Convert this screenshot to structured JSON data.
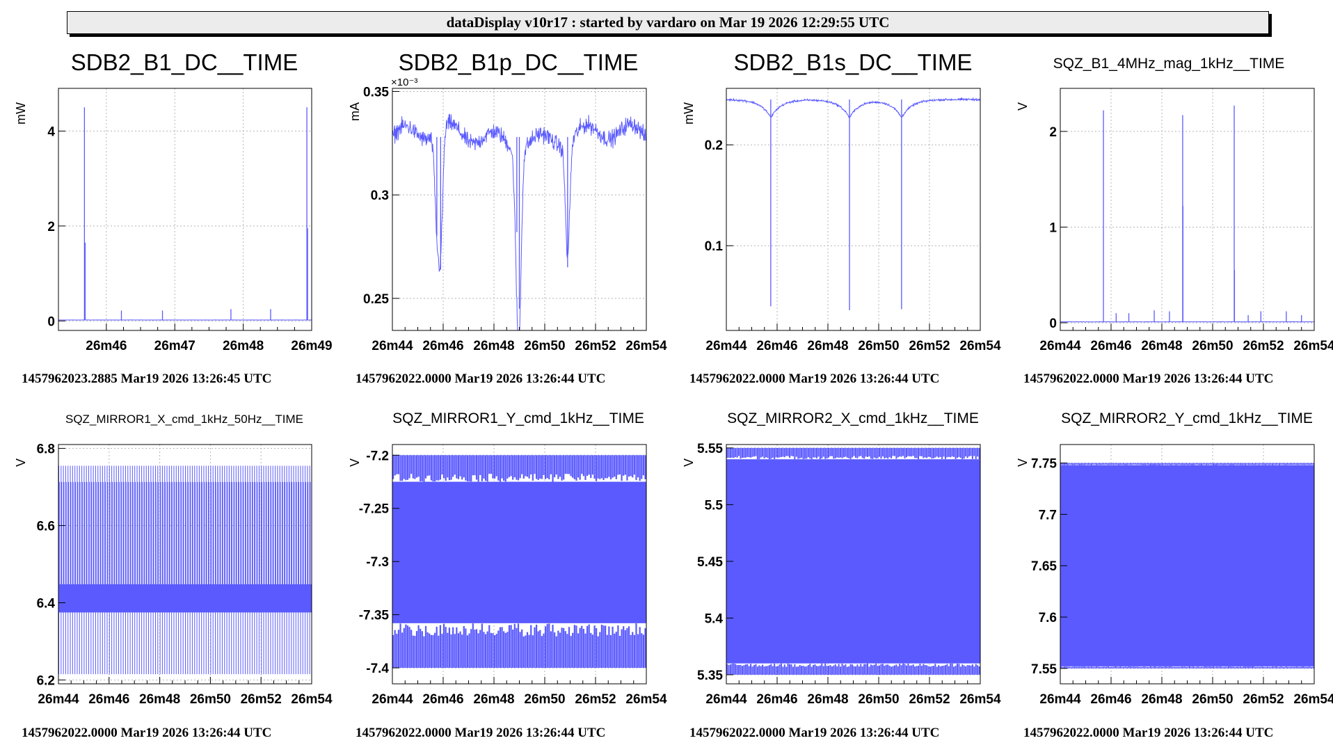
{
  "window": {
    "title": "dataDisplay v10r17 : started by vardaro on Mar 19 2026 12:29:55 UTC"
  },
  "colors": {
    "trace": "#5a5aff",
    "axis": "#000000",
    "grid": "#b4b4b4",
    "background": "#ffffff"
  },
  "chart_data": [
    {
      "type": "line",
      "title": "SDB2_B1_DC__TIME",
      "ylabel": "mW",
      "xlabel": "",
      "ylim": [
        -0.2,
        4.9
      ],
      "xlim": [
        5.3,
        9.0
      ],
      "x_tick_values": [
        6,
        7,
        8,
        9
      ],
      "x_tick_labels": [
        "26m46",
        "26m47",
        "26m48",
        "26m49"
      ],
      "y_tick_values": [
        0,
        2,
        4
      ],
      "y_tick_labels": [
        "0",
        "2",
        "4"
      ],
      "grid": true,
      "footer": "1457962023.2885 Mar19 2026 13:26:45 UTC",
      "shape": "spikes",
      "baseline": 0.02,
      "noise": 0.003,
      "features": [
        {
          "x": 5.68,
          "y": 4.5
        },
        {
          "x": 5.69,
          "y": 1.65
        },
        {
          "x": 6.22,
          "y": 0.22
        },
        {
          "x": 6.82,
          "y": 0.22
        },
        {
          "x": 7.82,
          "y": 0.25
        },
        {
          "x": 8.4,
          "y": 0.25
        },
        {
          "x": 8.93,
          "y": 4.5
        },
        {
          "x": 8.94,
          "y": 1.95
        }
      ]
    },
    {
      "type": "line",
      "title": "SDB2_B1p_DC__TIME",
      "ylabel": "mA",
      "xlabel": "",
      "exponent_label": "×10⁻³",
      "ylim": [
        0.2345,
        0.3515
      ],
      "xlim": [
        4.0,
        14.0
      ],
      "x_tick_values": [
        4,
        6,
        8,
        10,
        12,
        14
      ],
      "x_tick_labels": [
        "26m44",
        "26m46",
        "26m48",
        "26m50",
        "26m52",
        "26m54"
      ],
      "y_tick_values": [
        0.25,
        0.3,
        0.35
      ],
      "y_tick_labels": [
        "0.25",
        "0.3",
        "0.35"
      ],
      "grid": true,
      "footer": "1457962022.0000 Mar19 2026 13:26:44 UTC",
      "shape": "noisy",
      "baseline": 0.328,
      "noise": 0.006,
      "features": [
        {
          "x": 5.75,
          "y": 0.28
        },
        {
          "x": 5.9,
          "y": 0.264
        },
        {
          "x": 8.9,
          "y": 0.282
        },
        {
          "x": 9.0,
          "y": 0.245
        },
        {
          "x": 10.9,
          "y": 0.265
        }
      ]
    },
    {
      "type": "line",
      "title": "SDB2_B1s_DC__TIME",
      "ylabel": "mW",
      "xlabel": "",
      "ylim": [
        0.016,
        0.256
      ],
      "xlim": [
        4.0,
        14.0
      ],
      "x_tick_values": [
        4,
        6,
        8,
        10,
        12,
        14
      ],
      "x_tick_labels": [
        "26m44",
        "26m46",
        "26m48",
        "26m50",
        "26m52",
        "26m54"
      ],
      "y_tick_values": [
        0.1,
        0.2
      ],
      "y_tick_labels": [
        "0.1",
        "0.2"
      ],
      "grid": true,
      "footer": "1457962022.0000 Mar19 2026 13:26:44 UTC",
      "shape": "dips",
      "baseline": 0.245,
      "noise": 0.0015,
      "features": [
        {
          "x": 5.75,
          "y": 0.04
        },
        {
          "x": 8.85,
          "y": 0.036
        },
        {
          "x": 10.9,
          "y": 0.037
        }
      ]
    },
    {
      "type": "line",
      "title": "SQZ_B1_4MHz_mag_1kHz__TIME",
      "ylabel": "V",
      "xlabel": "",
      "ylim": [
        -0.08,
        2.45
      ],
      "xlim": [
        4.0,
        14.0
      ],
      "x_tick_values": [
        4,
        6,
        8,
        10,
        12,
        14
      ],
      "x_tick_labels": [
        "26m44",
        "26m46",
        "26m48",
        "26m50",
        "26m52",
        "26m54"
      ],
      "y_tick_values": [
        0,
        1,
        2
      ],
      "y_tick_labels": [
        "0",
        "1",
        "2"
      ],
      "grid": true,
      "footer": "1457962022.0000 Mar19 2026 13:26:44 UTC",
      "shape": "spikes",
      "baseline": 0.01,
      "noise": 0.003,
      "features": [
        {
          "x": 5.7,
          "y": 2.22
        },
        {
          "x": 6.2,
          "y": 0.1
        },
        {
          "x": 6.7,
          "y": 0.1
        },
        {
          "x": 7.7,
          "y": 0.13
        },
        {
          "x": 8.3,
          "y": 0.12
        },
        {
          "x": 8.82,
          "y": 2.17
        },
        {
          "x": 8.83,
          "y": 1.22
        },
        {
          "x": 10.85,
          "y": 2.27
        },
        {
          "x": 10.86,
          "y": 0.55
        },
        {
          "x": 11.4,
          "y": 0.08
        },
        {
          "x": 11.9,
          "y": 0.12
        },
        {
          "x": 12.9,
          "y": 0.12
        },
        {
          "x": 13.5,
          "y": 0.08
        }
      ]
    },
    {
      "type": "line",
      "title": "SQZ_MIRROR1_X_cmd_1kHz_50Hz__TIME",
      "ylabel": "V",
      "xlabel": "",
      "ylim": [
        6.19,
        6.81
      ],
      "xlim": [
        4.0,
        14.0
      ],
      "x_tick_values": [
        4,
        6,
        8,
        10,
        12,
        14
      ],
      "x_tick_labels": [
        "26m44",
        "26m46",
        "26m48",
        "26m50",
        "26m52",
        "26m54"
      ],
      "y_tick_values": [
        6.2,
        6.4,
        6.6,
        6.8
      ],
      "y_tick_labels": [
        "6.2",
        "6.4",
        "6.6",
        "6.8"
      ],
      "grid": true,
      "footer": "1457962022.0000 Mar19 2026 13:26:44 UTC",
      "shape": "square_wave",
      "bands": [
        {
          "low": 6.215,
          "high": 6.755,
          "n": 110,
          "fill": 0.3
        },
        {
          "low": 6.375,
          "high": 6.713,
          "n": 110,
          "fill": 0.55
        },
        {
          "low": 6.375,
          "high": 6.448,
          "n": 110,
          "fill": 1.0
        }
      ]
    },
    {
      "type": "line",
      "title": "SQZ_MIRROR1_Y_cmd_1kHz__TIME",
      "ylabel": "V",
      "xlabel": "",
      "ylim": [
        -7.415,
        -7.19
      ],
      "xlim": [
        4.0,
        14.0
      ],
      "x_tick_values": [
        4,
        6,
        8,
        10,
        12,
        14
      ],
      "x_tick_labels": [
        "26m44",
        "26m46",
        "26m48",
        "26m50",
        "26m52",
        "26m54"
      ],
      "y_tick_values": [
        -7.4,
        -7.35,
        -7.3,
        -7.25,
        -7.2
      ],
      "y_tick_labels": [
        "-7.4",
        "-7.35",
        "-7.3",
        "-7.25",
        "-7.2"
      ],
      "grid": true,
      "footer": "1457962022.0000 Mar19 2026 13:26:44 UTC",
      "shape": "dense_band",
      "band": {
        "low": -7.4,
        "high": -7.2,
        "inner_low": -7.358,
        "inner_high": -7.225,
        "n": 140
      }
    },
    {
      "type": "line",
      "title": "SQZ_MIRROR2_X_cmd_1kHz__TIME",
      "ylabel": "V",
      "xlabel": "",
      "ylim": [
        5.342,
        5.553
      ],
      "xlim": [
        4.0,
        14.0
      ],
      "x_tick_values": [
        4,
        6,
        8,
        10,
        12,
        14
      ],
      "x_tick_labels": [
        "26m44",
        "26m46",
        "26m48",
        "26m50",
        "26m52",
        "26m54"
      ],
      "y_tick_values": [
        5.35,
        5.4,
        5.45,
        5.5,
        5.55
      ],
      "y_tick_labels": [
        "5.35",
        "5.4",
        "5.45",
        "5.5",
        "5.55"
      ],
      "grid": true,
      "footer": "1457962022.0000 Mar19 2026 13:26:44 UTC",
      "shape": "dense_band",
      "band": {
        "low": 5.35,
        "high": 5.55,
        "inner_low": 5.36,
        "inner_high": 5.54,
        "n": 150
      }
    },
    {
      "type": "line",
      "title": "SQZ_MIRROR2_Y_cmd_1kHz__TIME",
      "ylabel": "V",
      "xlabel": "",
      "ylim": [
        7.535,
        7.768
      ],
      "xlim": [
        4.0,
        14.0
      ],
      "x_tick_values": [
        4,
        6,
        8,
        10,
        12,
        14
      ],
      "x_tick_labels": [
        "26m44",
        "26m46",
        "26m48",
        "26m50",
        "26m52",
        "26m54"
      ],
      "y_tick_values": [
        7.55,
        7.6,
        7.65,
        7.7,
        7.75
      ],
      "y_tick_labels": [
        "7.55",
        "7.6",
        "7.65",
        "7.7",
        "7.75"
      ],
      "grid": true,
      "footer": "1457962022.0000 Mar19 2026 13:26:44 UTC",
      "shape": "dense_band",
      "band": {
        "low": 7.55,
        "high": 7.75,
        "inner_low": 7.552,
        "inner_high": 7.748,
        "n": 150
      }
    }
  ]
}
